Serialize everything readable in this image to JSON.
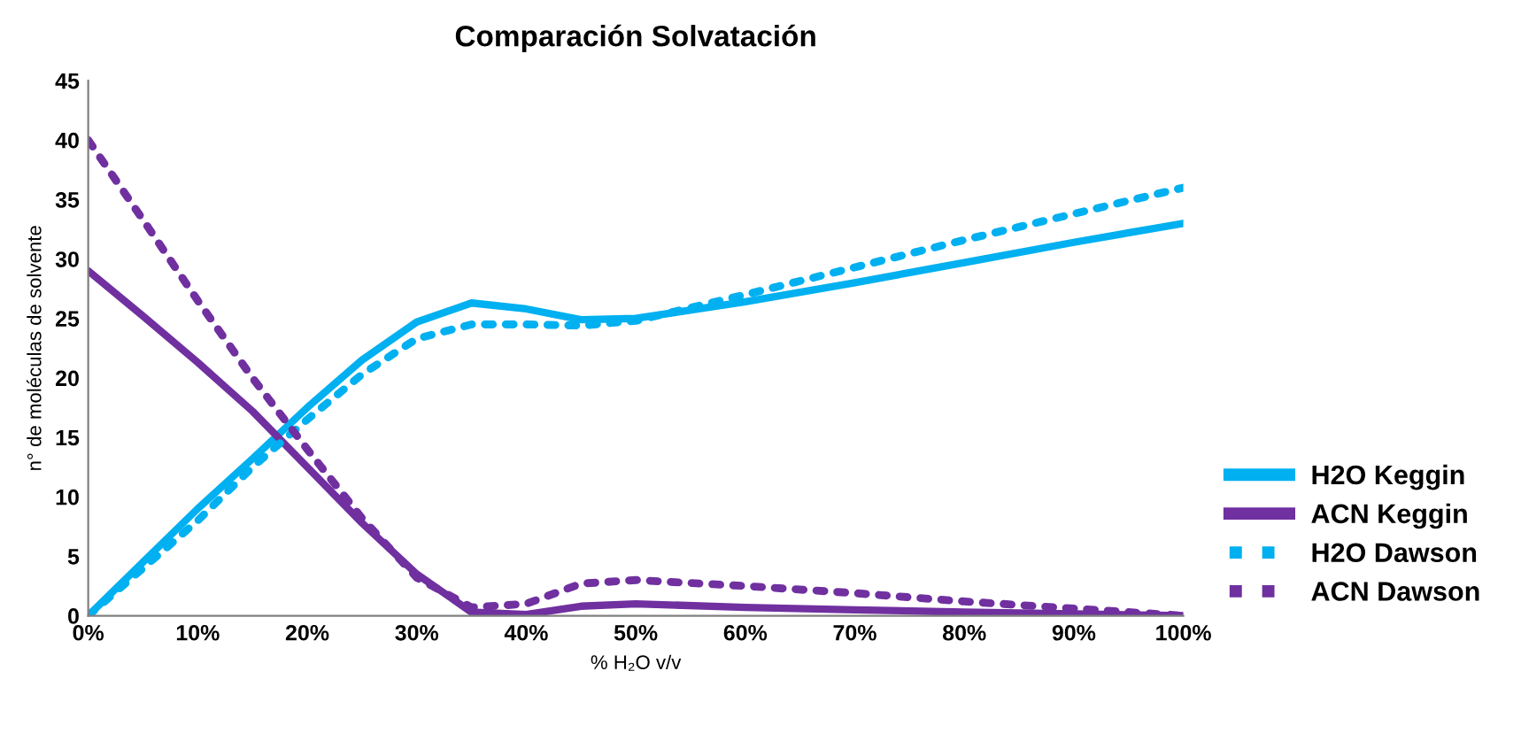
{
  "chart_data": {
    "type": "line",
    "title": "Comparación Solvatación",
    "xlabel": "% H₂O v/v",
    "ylabel": "n° de moléculas de solvente",
    "x": [
      0,
      5,
      10,
      15,
      20,
      25,
      30,
      35,
      40,
      45,
      50,
      60,
      70,
      80,
      90,
      100
    ],
    "series": [
      {
        "name": "H2O Keggin",
        "color": "#00b0f0",
        "line_style": "solid",
        "values": [
          0,
          4.5,
          9,
          13.2,
          17.5,
          21.5,
          24.7,
          26.3,
          25.8,
          24.9,
          25,
          26.4,
          28,
          29.7,
          31.4,
          33
        ]
      },
      {
        "name": "ACN Keggin",
        "color": "#7030a0",
        "line_style": "solid",
        "values": [
          29,
          25.2,
          21.3,
          17.2,
          12.5,
          7.8,
          3.5,
          0.3,
          0.1,
          0.8,
          1,
          0.7,
          0.5,
          0.3,
          0.15,
          0
        ]
      },
      {
        "name": "H2O Dawson",
        "color": "#00b0f0",
        "line_style": "dotted",
        "values": [
          0,
          4,
          8,
          12.5,
          16.5,
          20.3,
          23.3,
          24.5,
          24.5,
          24.4,
          24.8,
          27,
          29.3,
          31.6,
          33.8,
          36
        ]
      },
      {
        "name": "ACN Dawson",
        "color": "#7030a0",
        "line_style": "dotted",
        "values": [
          40,
          33.3,
          26.5,
          20,
          14,
          8.2,
          3.2,
          0.7,
          1,
          2.7,
          3,
          2.5,
          1.9,
          1.2,
          0.6,
          0
        ]
      }
    ],
    "xlim": [
      0,
      100
    ],
    "ylim": [
      0,
      45
    ],
    "xticks": [
      {
        "value": 0,
        "label": "0%"
      },
      {
        "value": 10,
        "label": "10%"
      },
      {
        "value": 20,
        "label": "20%"
      },
      {
        "value": 30,
        "label": "30%"
      },
      {
        "value": 40,
        "label": "40%"
      },
      {
        "value": 50,
        "label": "50%"
      },
      {
        "value": 60,
        "label": "60%"
      },
      {
        "value": 70,
        "label": "70%"
      },
      {
        "value": 80,
        "label": "80%"
      },
      {
        "value": 90,
        "label": "90%"
      },
      {
        "value": 100,
        "label": "100%"
      }
    ],
    "yticks": [
      0,
      5,
      10,
      15,
      20,
      25,
      30,
      35,
      40,
      45
    ],
    "grid": false,
    "legend": "right",
    "marker": "none"
  }
}
